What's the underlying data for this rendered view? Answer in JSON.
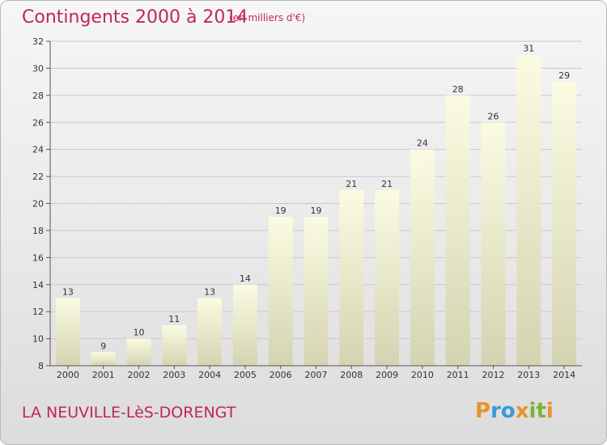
{
  "title": "Contingents 2000 à 2014",
  "unit": "(en milliers d'€)",
  "location": "LA NEUVILLE-LèS-DORENGT",
  "brand": {
    "letters": [
      "P",
      "r",
      "o",
      "x",
      "i",
      "t",
      "i"
    ],
    "colors": [
      "#e8932b",
      "#3a9ad9",
      "#3a9ad9",
      "#e8932b",
      "#78b432",
      "#78b432",
      "#e8932b"
    ]
  },
  "colors": {
    "accent": "#c0265c",
    "bar_top": "#fbfbe2",
    "bar_bottom": "#d4d4b2",
    "grid": "#c9c9c9"
  },
  "chart_data": {
    "type": "bar",
    "categories": [
      "2000",
      "2001",
      "2002",
      "2003",
      "2004",
      "2005",
      "2006",
      "2007",
      "2008",
      "2009",
      "2010",
      "2011",
      "2012",
      "2013",
      "2014"
    ],
    "values": [
      13,
      9,
      10,
      11,
      13,
      14,
      19,
      19,
      21,
      21,
      24,
      28,
      26,
      31,
      29
    ],
    "ylim": [
      8,
      32
    ],
    "yticks": [
      8,
      10,
      12,
      14,
      16,
      18,
      20,
      22,
      24,
      26,
      28,
      30,
      32
    ],
    "grid": true,
    "data_labels": true
  }
}
